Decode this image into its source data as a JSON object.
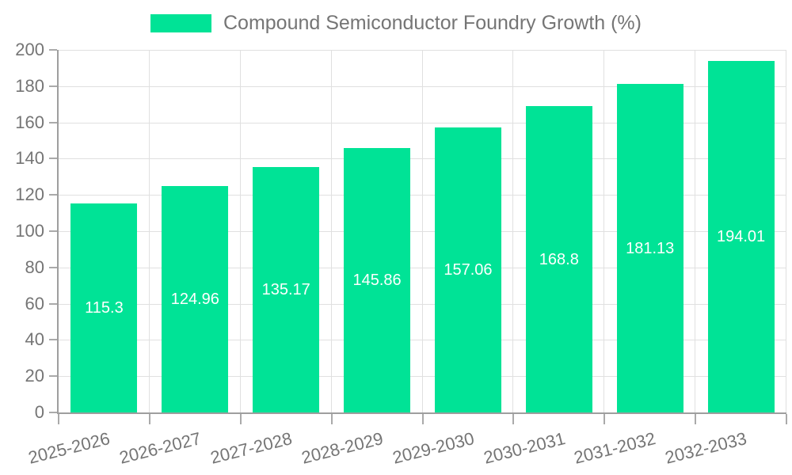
{
  "legend": {
    "series_label": "Compound Semiconductor Foundry Growth (%)"
  },
  "colors": {
    "bar": "#00E396",
    "axis_line": "#9e9e9e",
    "tick": "#aaaaaa",
    "gridline": "#e0e0e0",
    "axis_text": "#757575",
    "legend_text": "#757575",
    "value_text": "#ffffff",
    "background": "#ffffff"
  },
  "chart_data": {
    "type": "bar",
    "title": "",
    "xlabel": "",
    "ylabel": "",
    "legend_position": "top",
    "grid": true,
    "categories": [
      "2025-2026",
      "2026-2027",
      "2027-2028",
      "2028-2029",
      "2029-2030",
      "2030-2031",
      "2031-2032",
      "2032-2033"
    ],
    "series": [
      {
        "name": "Compound Semiconductor Foundry Growth (%)",
        "values": [
          115.3,
          124.96,
          135.17,
          145.86,
          157.06,
          168.8,
          181.13,
          194.01
        ]
      }
    ],
    "value_labels": [
      "115.3",
      "124.96",
      "135.17",
      "145.86",
      "157.06",
      "168.8",
      "181.13",
      "194.01"
    ],
    "value_labels_inside": true,
    "ylim": [
      0,
      200
    ],
    "ytick_step": 20,
    "ytick_labels": [
      "0",
      "20",
      "40",
      "60",
      "80",
      "100",
      "120",
      "140",
      "160",
      "180",
      "200"
    ],
    "xlabel_rotation_deg": -14
  }
}
